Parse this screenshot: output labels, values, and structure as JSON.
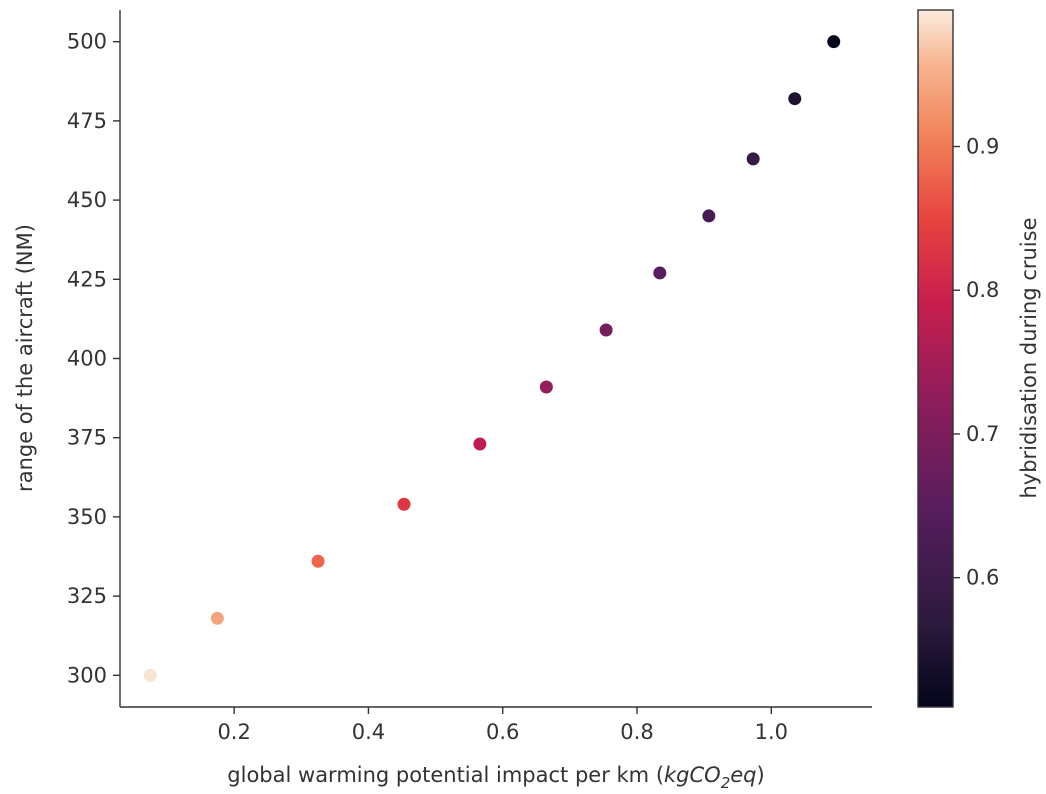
{
  "chart_data": {
    "type": "scatter",
    "title": "",
    "xlabel_prefix": "global warming potential impact per km (",
    "xlabel_unit_a": "kgCO",
    "xlabel_unit_sub": "2",
    "xlabel_unit_b": "eq",
    "xlabel_suffix": ")",
    "ylabel": "range of the aircraft (NM)",
    "colorbar_label": "hybridisation during cruise",
    "xlim": [
      0.03,
      1.15
    ],
    "ylim": [
      290,
      510
    ],
    "xticks": [
      0.2,
      0.4,
      0.6,
      0.8,
      1.0
    ],
    "yticks": [
      300,
      325,
      350,
      375,
      400,
      425,
      450,
      475,
      500
    ],
    "colorbar_range": [
      0.51,
      0.995
    ],
    "colorbar_ticks": [
      0.6,
      0.7,
      0.8,
      0.9
    ],
    "grid": false,
    "colormap": "rocket",
    "points": [
      {
        "x": 0.075,
        "y": 300,
        "c": 0.99
      },
      {
        "x": 0.175,
        "y": 318,
        "c": 0.94
      },
      {
        "x": 0.325,
        "y": 336,
        "c": 0.88
      },
      {
        "x": 0.453,
        "y": 354,
        "c": 0.83
      },
      {
        "x": 0.566,
        "y": 373,
        "c": 0.78
      },
      {
        "x": 0.665,
        "y": 391,
        "c": 0.73
      },
      {
        "x": 0.754,
        "y": 409,
        "c": 0.69
      },
      {
        "x": 0.834,
        "y": 427,
        "c": 0.65
      },
      {
        "x": 0.907,
        "y": 445,
        "c": 0.62
      },
      {
        "x": 0.973,
        "y": 463,
        "c": 0.59
      },
      {
        "x": 1.035,
        "y": 482,
        "c": 0.55
      },
      {
        "x": 1.093,
        "y": 500,
        "c": 0.51
      }
    ]
  }
}
